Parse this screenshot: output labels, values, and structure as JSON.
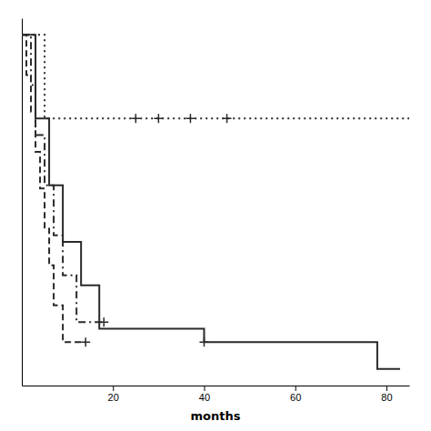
{
  "chart_data": {
    "type": "line",
    "xlabel": "months",
    "xlim": [
      0,
      85
    ],
    "ylim": [
      -0.05,
      1.05
    ],
    "xticks": [
      20,
      40,
      60,
      80
    ],
    "yticks": [],
    "tick_labels": "x",
    "color": "#2a2a2a",
    "series": [
      {
        "line_style": "dotted",
        "x": [
          0,
          5,
          5,
          85
        ],
        "values": [
          1.0,
          1.0,
          0.75,
          0.75
        ],
        "censor_x": [
          25,
          30,
          37,
          45
        ],
        "censor_y": [
          0.75,
          0.75,
          0.75,
          0.75
        ]
      },
      {
        "line_style": "dashdot",
        "x": [
          0,
          2,
          2,
          3,
          3,
          5,
          5,
          7,
          7,
          9,
          9,
          12,
          12,
          18
        ],
        "values": [
          1.0,
          1.0,
          0.85,
          0.85,
          0.7,
          0.7,
          0.55,
          0.55,
          0.4,
          0.4,
          0.28,
          0.28,
          0.14,
          0.14
        ],
        "censor_x": [
          18
        ],
        "censor_y": [
          0.14
        ]
      },
      {
        "line_style": "dashed",
        "x": [
          0,
          1,
          1,
          2,
          2,
          3,
          3,
          4,
          4,
          5,
          5,
          6,
          6,
          7,
          7,
          9,
          9,
          14
        ],
        "values": [
          1.0,
          1.0,
          0.88,
          0.88,
          0.77,
          0.77,
          0.65,
          0.65,
          0.54,
          0.54,
          0.42,
          0.42,
          0.31,
          0.31,
          0.19,
          0.19,
          0.08,
          0.08
        ],
        "censor_x": [
          14
        ],
        "censor_y": [
          0.08
        ]
      },
      {
        "line_style": "solid",
        "x": [
          0,
          3,
          3,
          6,
          6,
          9,
          9,
          13,
          13,
          17,
          17,
          40,
          40,
          78,
          78,
          83
        ],
        "values": [
          1.0,
          1.0,
          0.75,
          0.75,
          0.55,
          0.55,
          0.38,
          0.38,
          0.25,
          0.25,
          0.12,
          0.12,
          0.08,
          0.08,
          0.0,
          0.0
        ],
        "censor_x": [
          40
        ],
        "censor_y": [
          0.08
        ]
      }
    ]
  }
}
